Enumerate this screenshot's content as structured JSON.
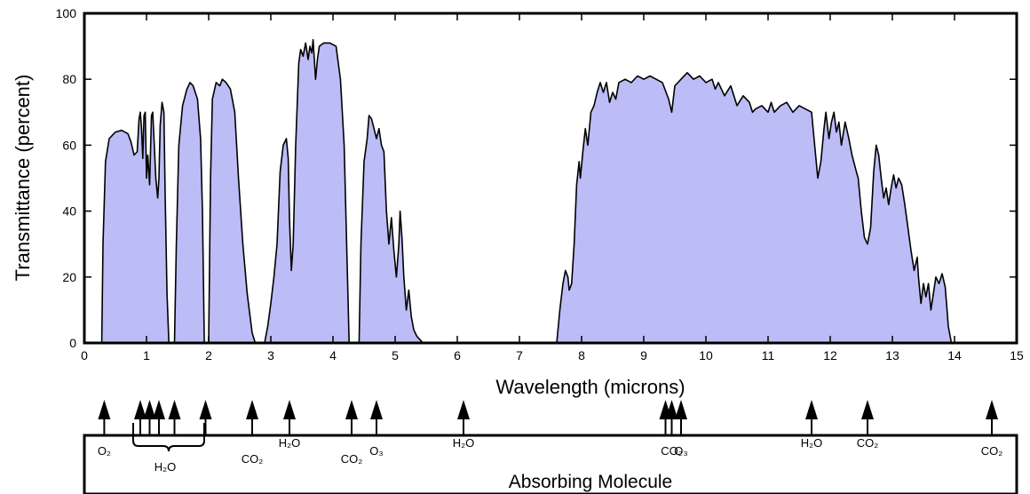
{
  "chart_data": {
    "type": "area",
    "xlabel": "Wavelength (microns)",
    "ylabel": "Transmittance (percent)",
    "xlim": [
      0,
      15
    ],
    "ylim": [
      0,
      100
    ],
    "xticks": [
      0,
      1,
      2,
      3,
      4,
      5,
      6,
      7,
      8,
      9,
      10,
      11,
      12,
      13,
      14,
      15
    ],
    "yticks": [
      0,
      20,
      40,
      60,
      80,
      100
    ],
    "fill_color": "#bcbcf6",
    "line_color": "#000000",
    "series": [
      {
        "values": [
          [
            0.28,
            0
          ],
          [
            0.3,
            30
          ],
          [
            0.34,
            55
          ],
          [
            0.4,
            62
          ],
          [
            0.5,
            64
          ],
          [
            0.6,
            64.5
          ],
          [
            0.7,
            63.5
          ],
          [
            0.75,
            61
          ],
          [
            0.8,
            57
          ],
          [
            0.85,
            58
          ],
          [
            0.88,
            68
          ],
          [
            0.9,
            70
          ],
          [
            0.92,
            65
          ],
          [
            0.94,
            56
          ],
          [
            0.96,
            69
          ],
          [
            0.98,
            70
          ],
          [
            1.0,
            50
          ],
          [
            1.02,
            57
          ],
          [
            1.05,
            48
          ],
          [
            1.08,
            69
          ],
          [
            1.1,
            70
          ],
          [
            1.12,
            62
          ],
          [
            1.15,
            50
          ],
          [
            1.18,
            44
          ],
          [
            1.2,
            50
          ],
          [
            1.22,
            66
          ],
          [
            1.25,
            73
          ],
          [
            1.28,
            70
          ],
          [
            1.3,
            45
          ],
          [
            1.33,
            15
          ],
          [
            1.36,
            0
          ],
          [
            1.45,
            0
          ],
          [
            1.48,
            30
          ],
          [
            1.52,
            60
          ],
          [
            1.58,
            72
          ],
          [
            1.65,
            77
          ],
          [
            1.7,
            79
          ],
          [
            1.75,
            78
          ],
          [
            1.82,
            74
          ],
          [
            1.87,
            62
          ],
          [
            1.9,
            40
          ],
          [
            1.93,
            0
          ],
          [
            2.0,
            0
          ],
          [
            2.03,
            50
          ],
          [
            2.06,
            74
          ],
          [
            2.12,
            79
          ],
          [
            2.18,
            78
          ],
          [
            2.22,
            80
          ],
          [
            2.28,
            79
          ],
          [
            2.35,
            77
          ],
          [
            2.42,
            70
          ],
          [
            2.48,
            50
          ],
          [
            2.55,
            30
          ],
          [
            2.62,
            15
          ],
          [
            2.7,
            3
          ],
          [
            2.75,
            0
          ],
          [
            2.9,
            0
          ],
          [
            2.95,
            5
          ],
          [
            3.0,
            12
          ],
          [
            3.05,
            20
          ],
          [
            3.1,
            30
          ],
          [
            3.15,
            52
          ],
          [
            3.2,
            60
          ],
          [
            3.25,
            62
          ],
          [
            3.28,
            56
          ],
          [
            3.3,
            38
          ],
          [
            3.33,
            22
          ],
          [
            3.36,
            30
          ],
          [
            3.4,
            60
          ],
          [
            3.45,
            85
          ],
          [
            3.48,
            89
          ],
          [
            3.52,
            87
          ],
          [
            3.56,
            91
          ],
          [
            3.6,
            86
          ],
          [
            3.63,
            90
          ],
          [
            3.66,
            88
          ],
          [
            3.68,
            92
          ],
          [
            3.72,
            80
          ],
          [
            3.75,
            86
          ],
          [
            3.78,
            90
          ],
          [
            3.85,
            91
          ],
          [
            3.95,
            91
          ],
          [
            4.05,
            90
          ],
          [
            4.12,
            80
          ],
          [
            4.18,
            60
          ],
          [
            4.22,
            30
          ],
          [
            4.26,
            0
          ],
          [
            4.42,
            0
          ],
          [
            4.45,
            30
          ],
          [
            4.5,
            55
          ],
          [
            4.55,
            62
          ],
          [
            4.58,
            69
          ],
          [
            4.62,
            68
          ],
          [
            4.66,
            65
          ],
          [
            4.7,
            62
          ],
          [
            4.74,
            65
          ],
          [
            4.78,
            60
          ],
          [
            4.82,
            58
          ],
          [
            4.86,
            40
          ],
          [
            4.9,
            30
          ],
          [
            4.94,
            38
          ],
          [
            4.98,
            28
          ],
          [
            5.02,
            20
          ],
          [
            5.06,
            30
          ],
          [
            5.08,
            40
          ],
          [
            5.11,
            32
          ],
          [
            5.14,
            20
          ],
          [
            5.18,
            10
          ],
          [
            5.22,
            16
          ],
          [
            5.26,
            8
          ],
          [
            5.3,
            4
          ],
          [
            5.35,
            2
          ],
          [
            5.4,
            1
          ],
          [
            5.45,
            0
          ],
          [
            7.6,
            0
          ],
          [
            7.65,
            10
          ],
          [
            7.7,
            18
          ],
          [
            7.74,
            22
          ],
          [
            7.78,
            20
          ],
          [
            7.8,
            16
          ],
          [
            7.84,
            18
          ],
          [
            7.88,
            30
          ],
          [
            7.92,
            48
          ],
          [
            7.96,
            55
          ],
          [
            7.98,
            50
          ],
          [
            8.02,
            58
          ],
          [
            8.06,
            65
          ],
          [
            8.1,
            60
          ],
          [
            8.15,
            70
          ],
          [
            8.2,
            72
          ],
          [
            8.25,
            76
          ],
          [
            8.3,
            79
          ],
          [
            8.35,
            76
          ],
          [
            8.4,
            79
          ],
          [
            8.45,
            73
          ],
          [
            8.5,
            76
          ],
          [
            8.55,
            74
          ],
          [
            8.6,
            79
          ],
          [
            8.7,
            80
          ],
          [
            8.8,
            79
          ],
          [
            8.9,
            81
          ],
          [
            9.0,
            80
          ],
          [
            9.1,
            81
          ],
          [
            9.2,
            80
          ],
          [
            9.3,
            79
          ],
          [
            9.4,
            74
          ],
          [
            9.45,
            70
          ],
          [
            9.5,
            78
          ],
          [
            9.6,
            80
          ],
          [
            9.7,
            82
          ],
          [
            9.8,
            80
          ],
          [
            9.9,
            81
          ],
          [
            10.0,
            79
          ],
          [
            10.1,
            80
          ],
          [
            10.15,
            77
          ],
          [
            10.2,
            79
          ],
          [
            10.3,
            75
          ],
          [
            10.4,
            78
          ],
          [
            10.5,
            72
          ],
          [
            10.6,
            75
          ],
          [
            10.7,
            73
          ],
          [
            10.75,
            70
          ],
          [
            10.8,
            71
          ],
          [
            10.9,
            72
          ],
          [
            11.0,
            70
          ],
          [
            11.05,
            73
          ],
          [
            11.1,
            70
          ],
          [
            11.2,
            72
          ],
          [
            11.3,
            73
          ],
          [
            11.4,
            70
          ],
          [
            11.5,
            72
          ],
          [
            11.6,
            71
          ],
          [
            11.7,
            70
          ],
          [
            11.75,
            60
          ],
          [
            11.8,
            50
          ],
          [
            11.85,
            55
          ],
          [
            11.9,
            65
          ],
          [
            11.93,
            70
          ],
          [
            11.98,
            62
          ],
          [
            12.02,
            67
          ],
          [
            12.06,
            70
          ],
          [
            12.1,
            64
          ],
          [
            12.14,
            67
          ],
          [
            12.18,
            60
          ],
          [
            12.24,
            67
          ],
          [
            12.3,
            62
          ],
          [
            12.35,
            57
          ],
          [
            12.42,
            52
          ],
          [
            12.45,
            50
          ],
          [
            12.5,
            40
          ],
          [
            12.55,
            32
          ],
          [
            12.6,
            30
          ],
          [
            12.65,
            35
          ],
          [
            12.7,
            52
          ],
          [
            12.74,
            60
          ],
          [
            12.78,
            57
          ],
          [
            12.82,
            50
          ],
          [
            12.86,
            44
          ],
          [
            12.9,
            47
          ],
          [
            12.94,
            42
          ],
          [
            12.98,
            47
          ],
          [
            13.02,
            51
          ],
          [
            13.06,
            47
          ],
          [
            13.1,
            50
          ],
          [
            13.15,
            48
          ],
          [
            13.2,
            42
          ],
          [
            13.25,
            35
          ],
          [
            13.3,
            28
          ],
          [
            13.35,
            22
          ],
          [
            13.4,
            26
          ],
          [
            13.42,
            20
          ],
          [
            13.46,
            12
          ],
          [
            13.5,
            18
          ],
          [
            13.54,
            14
          ],
          [
            13.58,
            18
          ],
          [
            13.62,
            10
          ],
          [
            13.66,
            15
          ],
          [
            13.7,
            20
          ],
          [
            13.75,
            18
          ],
          [
            13.8,
            21
          ],
          [
            13.85,
            17
          ],
          [
            13.88,
            10
          ],
          [
            13.9,
            5
          ],
          [
            13.93,
            2
          ],
          [
            13.95,
            0
          ]
        ]
      }
    ],
    "absorbers": [
      {
        "x": 0.32,
        "label": "O₂",
        "label_row": 1
      },
      {
        "x": 0.9,
        "label": "",
        "label_row": 0
      },
      {
        "x": 1.05,
        "label": "",
        "label_row": 0
      },
      {
        "x": 1.2,
        "label": "",
        "label_row": 0
      },
      {
        "x": 1.45,
        "label": "",
        "label_row": 0
      },
      {
        "x": 1.95,
        "label": "",
        "label_row": 0
      },
      {
        "x": 2.7,
        "label": "CO₂",
        "label_row": 2
      },
      {
        "x": 3.3,
        "label": "H₂O",
        "label_row": 0
      },
      {
        "x": 4.3,
        "label": "CO₂",
        "label_row": 2
      },
      {
        "x": 4.7,
        "label": "O₃",
        "label_row": 1
      },
      {
        "x": 6.1,
        "label": "H₂O",
        "label_row": 0
      },
      {
        "x": 9.35,
        "label": "",
        "label_row": 0
      },
      {
        "x": 9.45,
        "label": "CO₂",
        "label_row": 1
      },
      {
        "x": 9.6,
        "label": "O₃",
        "label_row": 1
      },
      {
        "x": 11.7,
        "label": "H₂O",
        "label_row": 0
      },
      {
        "x": 12.6,
        "label": "CO₂",
        "label_row": 0
      },
      {
        "x": 14.6,
        "label": "CO₂",
        "label_row": 1
      }
    ],
    "brace_label": "H₂O",
    "absorber_box_title": "Absorbing Molecule"
  }
}
